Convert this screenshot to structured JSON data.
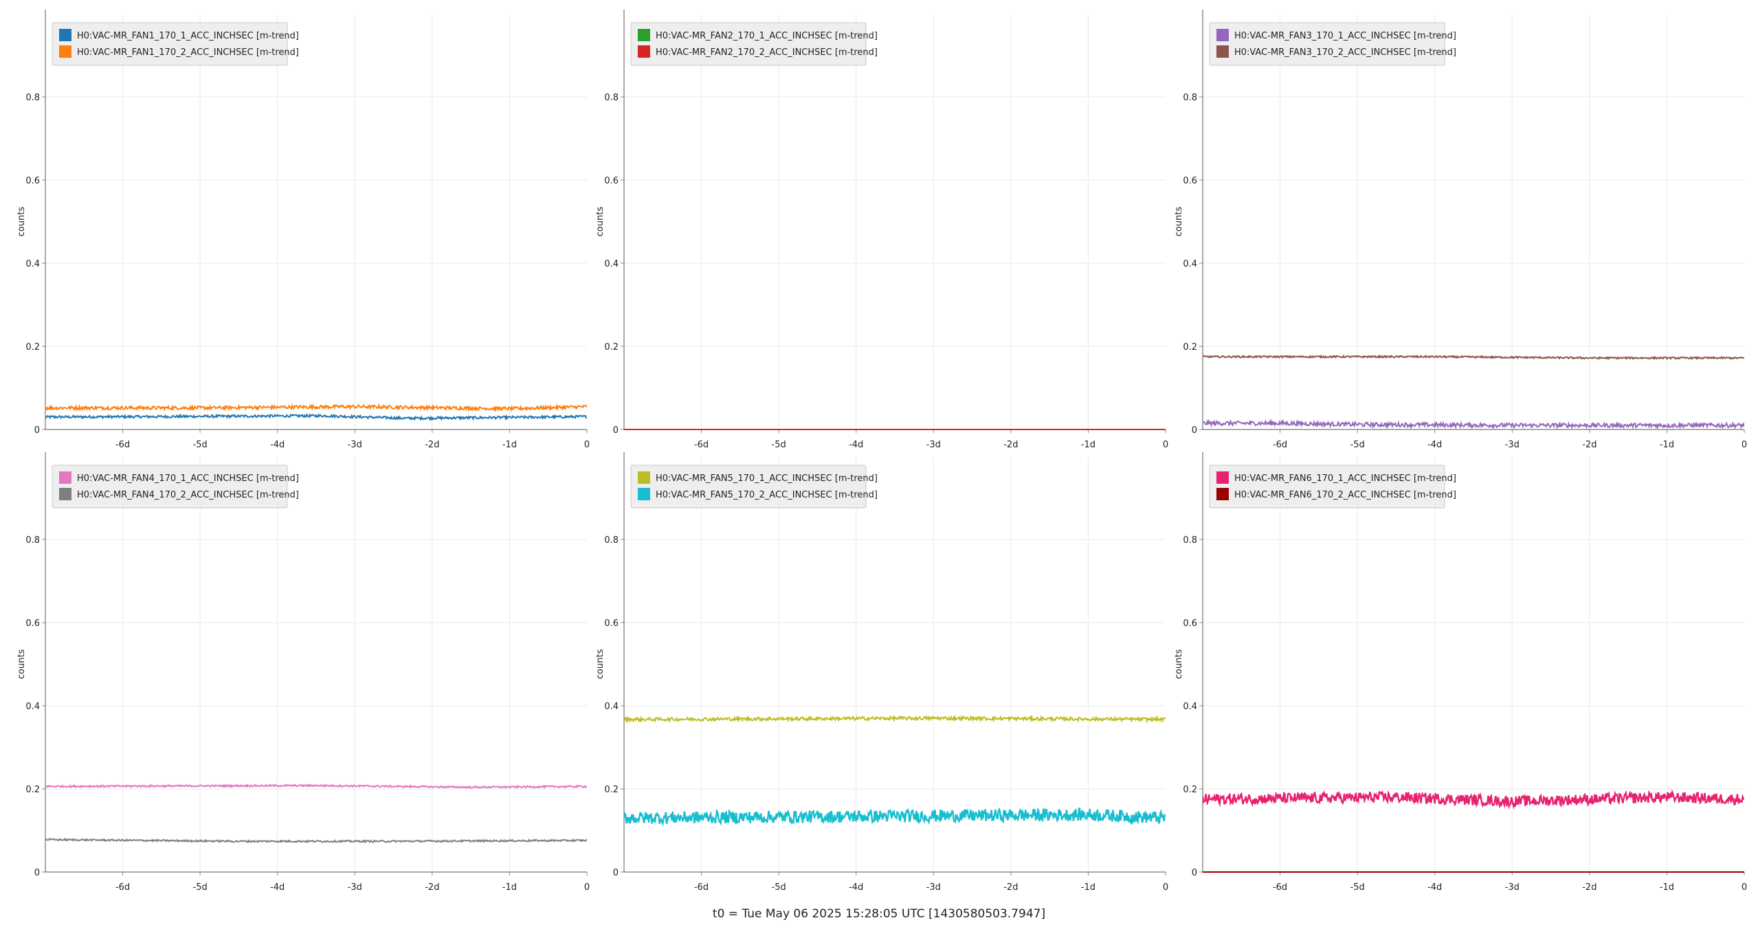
{
  "footer": {
    "t0_label": "t0 = Tue May 06 2025 15:28:05 UTC [1430580503.7947]"
  },
  "chart_data": [
    {
      "type": "line",
      "ylabel": "counts",
      "ylim": [
        0,
        1
      ],
      "yticks": [
        "0",
        "0.2",
        "0.4",
        "0.6",
        "0.8"
      ],
      "xlim": [
        -7,
        0
      ],
      "xticks": [
        "-6d",
        "-5d",
        "-4d",
        "-3d",
        "-2d",
        "-1d",
        "0"
      ],
      "grid": true,
      "legend": "top-left",
      "series": [
        {
          "name": "H0:VAC-MR_FAN1_170_1_ACC_INCHSEC [m-trend]",
          "color": "#1f77b4",
          "x": [
            -7,
            -5.5,
            -3.4,
            -2.35,
            -1,
            0
          ],
          "y": [
            0.03,
            0.031,
            0.033,
            0.027,
            0.029,
            0.031
          ],
          "noise": 0.003
        },
        {
          "name": "H0:VAC-MR_FAN1_170_2_ACC_INCHSEC [m-trend]",
          "color": "#ff7f0e",
          "x": [
            -7,
            -5,
            -3,
            -1,
            0
          ],
          "y": [
            0.052,
            0.052,
            0.055,
            0.05,
            0.055
          ],
          "noise": 0.004
        }
      ]
    },
    {
      "type": "line",
      "ylabel": "counts",
      "ylim": [
        0,
        1
      ],
      "yticks": [
        "0",
        "0.2",
        "0.4",
        "0.6",
        "0.8"
      ],
      "xlim": [
        -7,
        0
      ],
      "xticks": [
        "-6d",
        "-5d",
        "-4d",
        "-3d",
        "-2d",
        "-1d",
        "0"
      ],
      "grid": true,
      "legend": "top-left",
      "series": [
        {
          "name": "H0:VAC-MR_FAN2_170_1_ACC_INCHSEC [m-trend]",
          "color": "#2ca02c",
          "x": [
            -7,
            0
          ],
          "y": [
            0,
            0
          ],
          "noise": 0
        },
        {
          "name": "H0:VAC-MR_FAN2_170_2_ACC_INCHSEC [m-trend]",
          "color": "#d62728",
          "x": [
            -7,
            0
          ],
          "y": [
            0,
            0
          ],
          "noise": 0
        }
      ]
    },
    {
      "type": "line",
      "ylabel": "counts",
      "ylim": [
        0,
        1
      ],
      "yticks": [
        "0",
        "0.2",
        "0.4",
        "0.6",
        "0.8"
      ],
      "xlim": [
        -7,
        0
      ],
      "xticks": [
        "-6d",
        "-5d",
        "-4d",
        "-3d",
        "-2d",
        "-1d",
        "0"
      ],
      "grid": true,
      "legend": "top-left",
      "series": [
        {
          "name": "H0:VAC-MR_FAN3_170_1_ACC_INCHSEC [m-trend]",
          "color": "#9467bd",
          "x": [
            -7,
            -6,
            -5,
            -3,
            -1,
            0
          ],
          "y": [
            0.015,
            0.015,
            0.012,
            0.01,
            0.01,
            0.01
          ],
          "noise": 0.005
        },
        {
          "name": "H0:VAC-MR_FAN3_170_2_ACC_INCHSEC [m-trend]",
          "color": "#8c564b",
          "x": [
            -7,
            -4,
            -2,
            0
          ],
          "y": [
            0.175,
            0.175,
            0.172,
            0.172
          ],
          "noise": 0.002
        }
      ]
    },
    {
      "type": "line",
      "ylabel": "counts",
      "ylim": [
        0,
        1
      ],
      "yticks": [
        "0",
        "0.2",
        "0.4",
        "0.6",
        "0.8"
      ],
      "xlim": [
        -7,
        0
      ],
      "xticks": [
        "-6d",
        "-5d",
        "-4d",
        "-3d",
        "-2d",
        "-1d",
        "0"
      ],
      "grid": true,
      "legend": "top-left",
      "series": [
        {
          "name": "H0:VAC-MR_FAN4_170_1_ACC_INCHSEC [m-trend]",
          "color": "#e377c2",
          "x": [
            -7,
            -3.5,
            -1.5,
            0
          ],
          "y": [
            0.206,
            0.208,
            0.204,
            0.206
          ],
          "noise": 0.002
        },
        {
          "name": "H0:VAC-MR_FAN4_170_2_ACC_INCHSEC [m-trend]",
          "color": "#7f7f7f",
          "x": [
            -7,
            -4.5,
            -2.5,
            0
          ],
          "y": [
            0.078,
            0.074,
            0.074,
            0.076
          ],
          "noise": 0.002
        }
      ]
    },
    {
      "type": "line",
      "ylabel": "counts",
      "ylim": [
        0,
        1
      ],
      "yticks": [
        "0",
        "0.2",
        "0.4",
        "0.6",
        "0.8"
      ],
      "xlim": [
        -7,
        0
      ],
      "xticks": [
        "-6d",
        "-5d",
        "-4d",
        "-3d",
        "-2d",
        "-1d",
        "0"
      ],
      "grid": true,
      "legend": "top-left",
      "series": [
        {
          "name": "H0:VAC-MR_FAN5_170_1_ACC_INCHSEC [m-trend]",
          "color": "#bcbd22",
          "x": [
            -7,
            -3,
            0
          ],
          "y": [
            0.367,
            0.37,
            0.367
          ],
          "noise": 0.004
        },
        {
          "name": "H0:VAC-MR_FAN5_170_2_ACC_INCHSEC [m-trend]",
          "color": "#17becf",
          "x": [
            -7,
            -3,
            -1,
            0
          ],
          "y": [
            0.13,
            0.135,
            0.138,
            0.13
          ],
          "noise": 0.015
        }
      ]
    },
    {
      "type": "line",
      "ylabel": "counts",
      "ylim": [
        0,
        1
      ],
      "yticks": [
        "0",
        "0.2",
        "0.4",
        "0.6",
        "0.8"
      ],
      "xlim": [
        -7,
        0
      ],
      "xticks": [
        "-6d",
        "-5d",
        "-4d",
        "-3d",
        "-2d",
        "-1d",
        "0"
      ],
      "grid": true,
      "legend": "top-left",
      "series": [
        {
          "name": "H0:VAC-MR_FAN6_170_1_ACC_INCHSEC [m-trend]",
          "color": "#e7226f",
          "x": [
            -7,
            -4.5,
            -3,
            -1,
            0
          ],
          "y": [
            0.175,
            0.18,
            0.17,
            0.18,
            0.175
          ],
          "noise": 0.013
        },
        {
          "name": "H0:VAC-MR_FAN6_170_2_ACC_INCHSEC [m-trend]",
          "color": "#9a0000",
          "x": [
            -7,
            0
          ],
          "y": [
            0,
            0
          ],
          "noise": 0
        }
      ]
    }
  ]
}
